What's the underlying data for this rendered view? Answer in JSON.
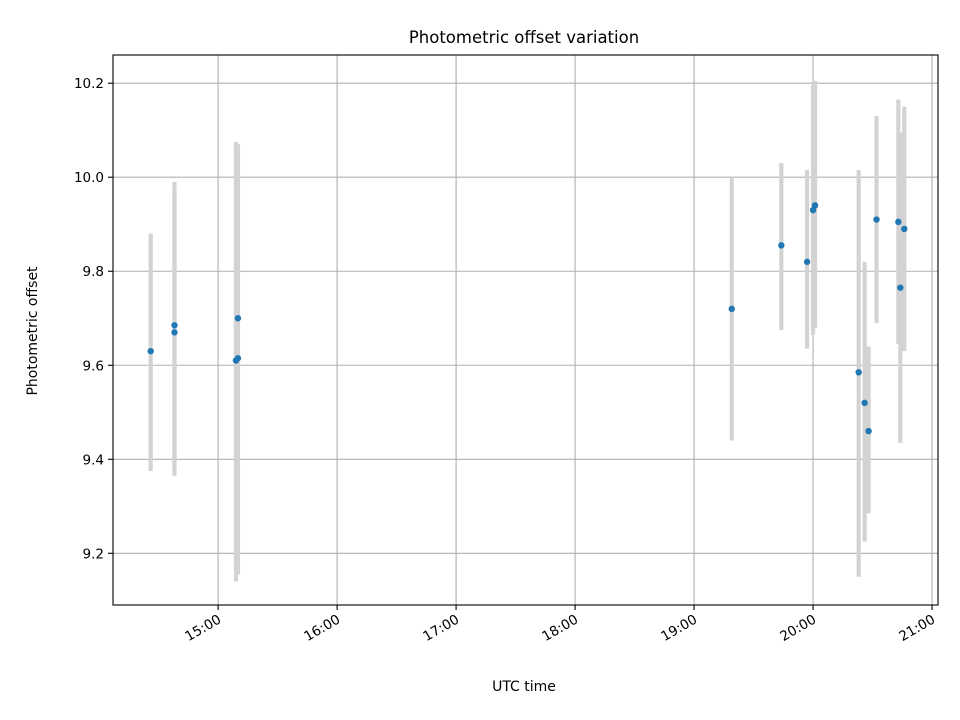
{
  "chart_data": {
    "type": "scatter",
    "title": "Photometric offset variation",
    "xlabel": "UTC time",
    "ylabel": "Photometric offset",
    "grid": true,
    "xlim": [
      "14:07",
      "21:03"
    ],
    "ylim": [
      9.09,
      10.26
    ],
    "x_ticks": [
      "15:00",
      "16:00",
      "17:00",
      "18:00",
      "19:00",
      "20:00",
      "21:00"
    ],
    "y_ticks": [
      "9.2",
      "9.4",
      "9.6",
      "9.8",
      "10.0",
      "10.2"
    ],
    "colors": {
      "points": "#1f77b4",
      "errorbars": "#d3d3d3",
      "grid": "#b0b0b0"
    },
    "points": [
      {
        "x": "14:26",
        "y": 9.63,
        "ylow": 9.375,
        "yhigh": 9.88
      },
      {
        "x": "14:38",
        "y": 9.685,
        "ylow": 9.385,
        "yhigh": 9.99
      },
      {
        "x": "14:38",
        "y": 9.67,
        "ylow": 9.365,
        "yhigh": 9.97
      },
      {
        "x": "15:09",
        "y": 9.61,
        "ylow": 9.14,
        "yhigh": 10.075
      },
      {
        "x": "15:10",
        "y": 9.615,
        "ylow": 9.155,
        "yhigh": 10.07
      },
      {
        "x": "15:10",
        "y": 9.7,
        "ylow": 9.335,
        "yhigh": 10.07
      },
      {
        "x": "19:19",
        "y": 9.72,
        "ylow": 9.44,
        "yhigh": 10.0
      },
      {
        "x": "19:44",
        "y": 9.855,
        "ylow": 9.675,
        "yhigh": 10.03
      },
      {
        "x": "19:57",
        "y": 9.82,
        "ylow": 9.635,
        "yhigh": 10.015
      },
      {
        "x": "20:00",
        "y": 9.93,
        "ylow": 9.665,
        "yhigh": 10.195
      },
      {
        "x": "20:01",
        "y": 9.94,
        "ylow": 9.68,
        "yhigh": 10.205
      },
      {
        "x": "20:23",
        "y": 9.585,
        "ylow": 9.15,
        "yhigh": 10.015
      },
      {
        "x": "20:26",
        "y": 9.52,
        "ylow": 9.225,
        "yhigh": 9.82
      },
      {
        "x": "20:28",
        "y": 9.46,
        "ylow": 9.285,
        "yhigh": 9.64
      },
      {
        "x": "20:32",
        "y": 9.91,
        "ylow": 9.69,
        "yhigh": 10.13
      },
      {
        "x": "20:43",
        "y": 9.905,
        "ylow": 9.645,
        "yhigh": 10.165
      },
      {
        "x": "20:44",
        "y": 9.765,
        "ylow": 9.435,
        "yhigh": 10.095
      },
      {
        "x": "20:46",
        "y": 9.89,
        "ylow": 9.63,
        "yhigh": 10.15
      }
    ]
  }
}
